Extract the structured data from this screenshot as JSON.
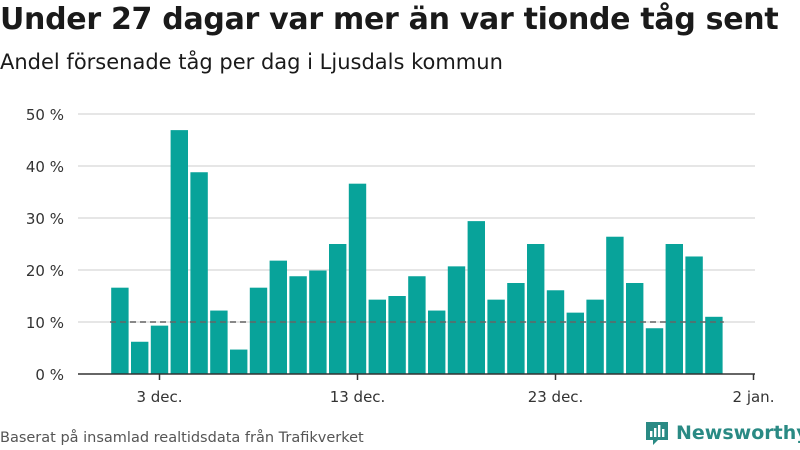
{
  "title": "Under 27 dagar var mer än var tionde tåg sent",
  "subtitle": "Andel försenade tåg per dag i Ljusdals kommun",
  "source": "Baserat på insamlad realtidsdata från Trafikverket",
  "brand": "Newsworthy",
  "colors": {
    "bar": "#08a39a",
    "grid": "#dddddd",
    "axis": "#333333",
    "reference": "#666666",
    "brand": "#2a8a84"
  },
  "chart_data": {
    "type": "bar",
    "x_start": "2023-12-01",
    "title": "Under 27 dagar var mer än var tionde tåg sent",
    "subtitle": "Andel försenade tåg per dag i Ljusdals kommun",
    "xlabel": "",
    "ylabel": "",
    "ylim": [
      0,
      50
    ],
    "y_ticks": [
      "0 %",
      "10 %",
      "20 %",
      "30 %",
      "40 %",
      "50 %"
    ],
    "x_ticks": [
      {
        "label": "3 dec.",
        "day": 2
      },
      {
        "label": "13 dec.",
        "day": 12
      },
      {
        "label": "23 dec.",
        "day": 22
      },
      {
        "label": "2 jan.",
        "day": 32
      }
    ],
    "reference_line": 10,
    "grid": true,
    "values": [
      16.6,
      6.2,
      9.3,
      46.9,
      38.8,
      12.2,
      4.7,
      16.6,
      21.8,
      18.8,
      19.9,
      25.0,
      36.6,
      14.3,
      15.0,
      18.8,
      12.2,
      20.7,
      29.4,
      14.3,
      17.5,
      25.0,
      16.1,
      11.8,
      14.3,
      26.4,
      17.5,
      8.8,
      25.0,
      22.6,
      11.0
    ]
  }
}
